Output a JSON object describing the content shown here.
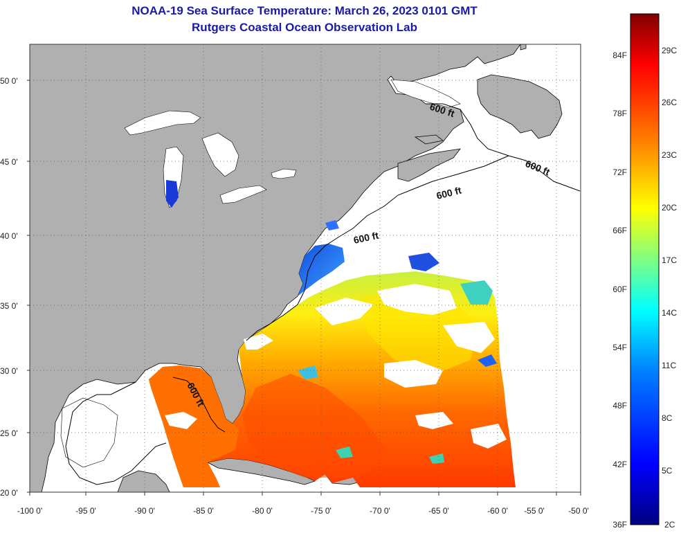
{
  "title_line1": "NOAA-19 Sea Surface Temperature:  March 26, 2023 0101 GMT",
  "title_line2": "Rutgers Coastal Ocean Observation Lab",
  "lon_ticks": [
    "-100 0'",
    "-95 0'",
    "-90 0'",
    "-85 0'",
    "-80 0'",
    "-75 0'",
    "-70 0'",
    "-65 0'",
    "-60 0'",
    "-55 0'",
    "-50 0'"
  ],
  "lat_ticks": [
    "50 0'",
    "45 0'",
    "40 0'",
    "35 0'",
    "30 0'",
    "25 0'",
    "20 0'"
  ],
  "isobath_labels": [
    "600 ft",
    "600 ft",
    "600 ft",
    "600 ft",
    "600 ft"
  ],
  "colorbar": {
    "fahrenheit_labels": [
      "84F",
      "78F",
      "72F",
      "66F",
      "60F",
      "54F",
      "48F",
      "42F",
      "36F"
    ],
    "celsius_labels": [
      "29C",
      "26C",
      "23C",
      "20C",
      "17C",
      "14C",
      "11C",
      "8C",
      "5C",
      "2C"
    ],
    "colors": [
      "#000080",
      "#0000ff",
      "#0080ff",
      "#00ffff",
      "#80ff80",
      "#ffff00",
      "#ff8000",
      "#ff0000",
      "#800000"
    ]
  },
  "colors": {
    "land": "#b0b0b0",
    "no_data": "#ffffff",
    "title": "#1a1aa6"
  }
}
